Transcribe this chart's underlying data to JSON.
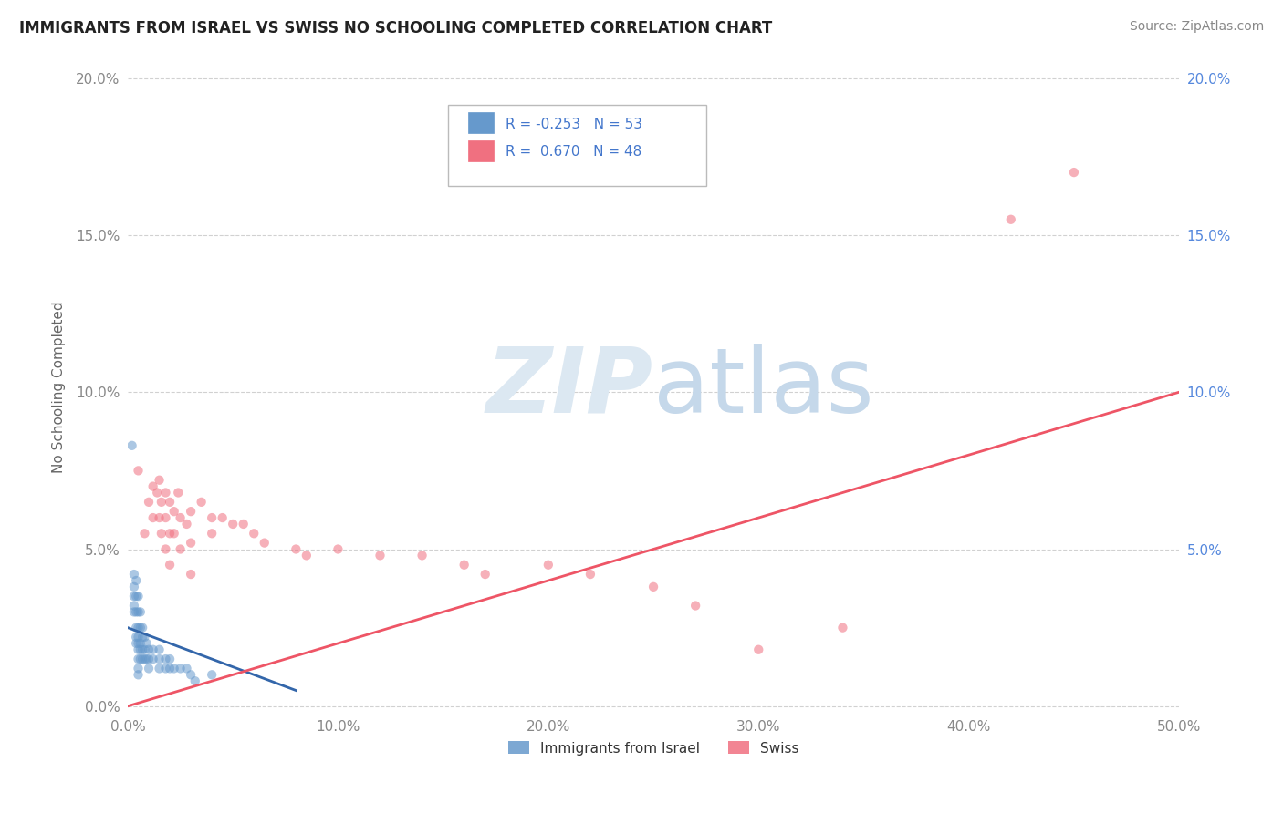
{
  "title": "IMMIGRANTS FROM ISRAEL VS SWISS NO SCHOOLING COMPLETED CORRELATION CHART",
  "source": "Source: ZipAtlas.com",
  "ylabel": "No Schooling Completed",
  "xlim": [
    0.0,
    0.5
  ],
  "ylim": [
    -0.002,
    0.205
  ],
  "xticks": [
    0.0,
    0.1,
    0.2,
    0.3,
    0.4,
    0.5
  ],
  "yticks": [
    0.0,
    0.05,
    0.1,
    0.15,
    0.2
  ],
  "xticklabels": [
    "0.0%",
    "10.0%",
    "20.0%",
    "30.0%",
    "40.0%",
    "50.0%"
  ],
  "yticklabels_left": [
    "0.0%",
    "5.0%",
    "10.0%",
    "15.0%",
    "20.0%"
  ],
  "yticklabels_right": [
    "",
    "5.0%",
    "10.0%",
    "15.0%",
    "20.0%"
  ],
  "legend_R1": "-0.253",
  "legend_N1": "53",
  "legend_R2": "0.670",
  "legend_N2": "48",
  "israel_scatter": [
    [
      0.002,
      0.083
    ],
    [
      0.003,
      0.042
    ],
    [
      0.003,
      0.038
    ],
    [
      0.003,
      0.035
    ],
    [
      0.003,
      0.032
    ],
    [
      0.003,
      0.03
    ],
    [
      0.004,
      0.04
    ],
    [
      0.004,
      0.035
    ],
    [
      0.004,
      0.03
    ],
    [
      0.004,
      0.025
    ],
    [
      0.004,
      0.022
    ],
    [
      0.004,
      0.02
    ],
    [
      0.005,
      0.035
    ],
    [
      0.005,
      0.03
    ],
    [
      0.005,
      0.025
    ],
    [
      0.005,
      0.022
    ],
    [
      0.005,
      0.02
    ],
    [
      0.005,
      0.018
    ],
    [
      0.005,
      0.015
    ],
    [
      0.005,
      0.012
    ],
    [
      0.005,
      0.01
    ],
    [
      0.006,
      0.03
    ],
    [
      0.006,
      0.025
    ],
    [
      0.006,
      0.02
    ],
    [
      0.006,
      0.018
    ],
    [
      0.006,
      0.015
    ],
    [
      0.007,
      0.025
    ],
    [
      0.007,
      0.022
    ],
    [
      0.007,
      0.018
    ],
    [
      0.007,
      0.015
    ],
    [
      0.008,
      0.022
    ],
    [
      0.008,
      0.018
    ],
    [
      0.008,
      0.015
    ],
    [
      0.009,
      0.02
    ],
    [
      0.009,
      0.015
    ],
    [
      0.01,
      0.018
    ],
    [
      0.01,
      0.015
    ],
    [
      0.01,
      0.012
    ],
    [
      0.012,
      0.018
    ],
    [
      0.012,
      0.015
    ],
    [
      0.015,
      0.018
    ],
    [
      0.015,
      0.015
    ],
    [
      0.015,
      0.012
    ],
    [
      0.018,
      0.015
    ],
    [
      0.018,
      0.012
    ],
    [
      0.02,
      0.015
    ],
    [
      0.02,
      0.012
    ],
    [
      0.022,
      0.012
    ],
    [
      0.025,
      0.012
    ],
    [
      0.028,
      0.012
    ],
    [
      0.03,
      0.01
    ],
    [
      0.032,
      0.008
    ],
    [
      0.04,
      0.01
    ]
  ],
  "swiss_scatter": [
    [
      0.005,
      0.075
    ],
    [
      0.008,
      0.055
    ],
    [
      0.01,
      0.065
    ],
    [
      0.012,
      0.07
    ],
    [
      0.012,
      0.06
    ],
    [
      0.014,
      0.068
    ],
    [
      0.015,
      0.072
    ],
    [
      0.015,
      0.06
    ],
    [
      0.016,
      0.065
    ],
    [
      0.016,
      0.055
    ],
    [
      0.018,
      0.068
    ],
    [
      0.018,
      0.06
    ],
    [
      0.018,
      0.05
    ],
    [
      0.02,
      0.065
    ],
    [
      0.02,
      0.055
    ],
    [
      0.02,
      0.045
    ],
    [
      0.022,
      0.062
    ],
    [
      0.022,
      0.055
    ],
    [
      0.024,
      0.068
    ],
    [
      0.025,
      0.06
    ],
    [
      0.025,
      0.05
    ],
    [
      0.028,
      0.058
    ],
    [
      0.03,
      0.062
    ],
    [
      0.03,
      0.052
    ],
    [
      0.03,
      0.042
    ],
    [
      0.035,
      0.065
    ],
    [
      0.04,
      0.06
    ],
    [
      0.04,
      0.055
    ],
    [
      0.045,
      0.06
    ],
    [
      0.05,
      0.058
    ],
    [
      0.055,
      0.058
    ],
    [
      0.06,
      0.055
    ],
    [
      0.065,
      0.052
    ],
    [
      0.08,
      0.05
    ],
    [
      0.085,
      0.048
    ],
    [
      0.1,
      0.05
    ],
    [
      0.12,
      0.048
    ],
    [
      0.14,
      0.048
    ],
    [
      0.16,
      0.045
    ],
    [
      0.17,
      0.042
    ],
    [
      0.2,
      0.045
    ],
    [
      0.22,
      0.042
    ],
    [
      0.25,
      0.038
    ],
    [
      0.27,
      0.032
    ],
    [
      0.3,
      0.018
    ],
    [
      0.34,
      0.025
    ],
    [
      0.42,
      0.155
    ],
    [
      0.45,
      0.17
    ]
  ],
  "israel_line_x": [
    0.0,
    0.08
  ],
  "israel_line_y": [
    0.025,
    0.005
  ],
  "swiss_line_x": [
    0.0,
    0.5
  ],
  "swiss_line_y": [
    0.0,
    0.1
  ],
  "background_color": "#ffffff",
  "grid_color": "#cccccc",
  "scatter_size": 55,
  "scatter_alpha": 0.55,
  "israel_color": "#6699cc",
  "swiss_color": "#f07080",
  "israel_line_color": "#3366aa",
  "swiss_line_color": "#ee5566",
  "watermark_zip_color": "#dce8f2",
  "watermark_atlas_color": "#c5d8ea",
  "tick_color": "#888888",
  "right_tick_color": "#5588dd",
  "ylabel_color": "#666666",
  "title_color": "#222222",
  "source_color": "#888888",
  "legend_box_color": "#dddddd",
  "legend_text_color": "#4477cc"
}
